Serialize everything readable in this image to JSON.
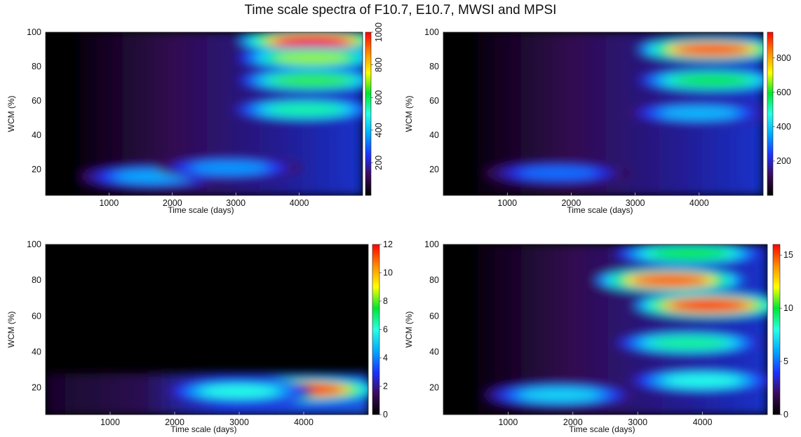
{
  "title": "Time scale spectra of F10.7, E10.7, MWSI and MPSI",
  "colormap": [
    "#000000",
    "#3c0a5a",
    "#1e32ff",
    "#00aaff",
    "#28ffe6",
    "#00e632",
    "#ffff00",
    "#ff8c00",
    "#ff0000"
  ],
  "chart_data": [
    {
      "type": "heatmap",
      "xlabel": "Time scale (days)",
      "ylabel": "WCM (%)",
      "x_ticks": [
        1000,
        2000,
        3000,
        4000
      ],
      "y_ticks": [
        20,
        40,
        60,
        80,
        100
      ],
      "xlim": [
        0,
        5000
      ],
      "ylim": [
        5,
        100
      ],
      "colorbar": {
        "ticks": [
          200,
          400,
          600,
          800,
          1000
        ],
        "range": [
          0,
          1000
        ],
        "label_orientation": "rotated"
      },
      "hotspots": [
        {
          "x": 4200,
          "y": 95,
          "value": 1000
        },
        {
          "x": 4200,
          "y": 85,
          "value": 700
        },
        {
          "x": 4200,
          "y": 72,
          "value": 650
        },
        {
          "x": 4100,
          "y": 55,
          "value": 550
        },
        {
          "x": 1700,
          "y": 16,
          "value": 380
        },
        {
          "x": 2900,
          "y": 21,
          "value": 360
        }
      ]
    },
    {
      "type": "heatmap",
      "xlabel": "Time scale (days)",
      "ylabel": "WCM (%)",
      "x_ticks": [
        1000,
        2000,
        3000,
        4000
      ],
      "y_ticks": [
        20,
        40,
        60,
        80,
        100
      ],
      "xlim": [
        0,
        5000
      ],
      "ylim": [
        5,
        100
      ],
      "colorbar": {
        "ticks": [
          200,
          400,
          600,
          800
        ],
        "range": [
          0,
          950
        ],
        "label_orientation": "horizontal"
      },
      "hotspots": [
        {
          "x": 4200,
          "y": 90,
          "value": 900
        },
        {
          "x": 4200,
          "y": 72,
          "value": 600
        },
        {
          "x": 4000,
          "y": 53,
          "value": 380
        },
        {
          "x": 1800,
          "y": 18,
          "value": 300
        }
      ]
    },
    {
      "type": "heatmap",
      "xlabel": "Time scale (days)",
      "ylabel": "WCM (%)",
      "x_ticks": [
        1000,
        2000,
        3000,
        4000
      ],
      "y_ticks": [
        20,
        40,
        60,
        80,
        100
      ],
      "xlim": [
        0,
        5000
      ],
      "ylim": [
        5,
        100
      ],
      "colorbar": {
        "ticks": [
          0,
          2,
          4,
          6,
          8,
          10,
          12
        ],
        "range": [
          0,
          12
        ],
        "label_orientation": "horizontal"
      },
      "hotspots": [
        {
          "x": 4000,
          "y": 19,
          "value": 12
        },
        {
          "x": 3000,
          "y": 18,
          "value": 6
        }
      ]
    },
    {
      "type": "heatmap",
      "xlabel": "Time scale (days)",
      "ylabel": "WCM (%)",
      "x_ticks": [
        1000,
        2000,
        3000,
        4000
      ],
      "y_ticks": [
        20,
        40,
        60,
        80,
        100
      ],
      "xlim": [
        0,
        5000
      ],
      "ylim": [
        5,
        100
      ],
      "colorbar": {
        "ticks": [
          0,
          5,
          10,
          15
        ],
        "range": [
          0,
          16
        ],
        "label_orientation": "horizontal"
      },
      "hotspots": [
        {
          "x": 4100,
          "y": 66,
          "value": 16
        },
        {
          "x": 3500,
          "y": 80,
          "value": 15
        },
        {
          "x": 3800,
          "y": 95,
          "value": 10
        },
        {
          "x": 3800,
          "y": 45,
          "value": 9
        },
        {
          "x": 4000,
          "y": 24,
          "value": 8
        },
        {
          "x": 1800,
          "y": 16,
          "value": 7
        }
      ]
    }
  ]
}
